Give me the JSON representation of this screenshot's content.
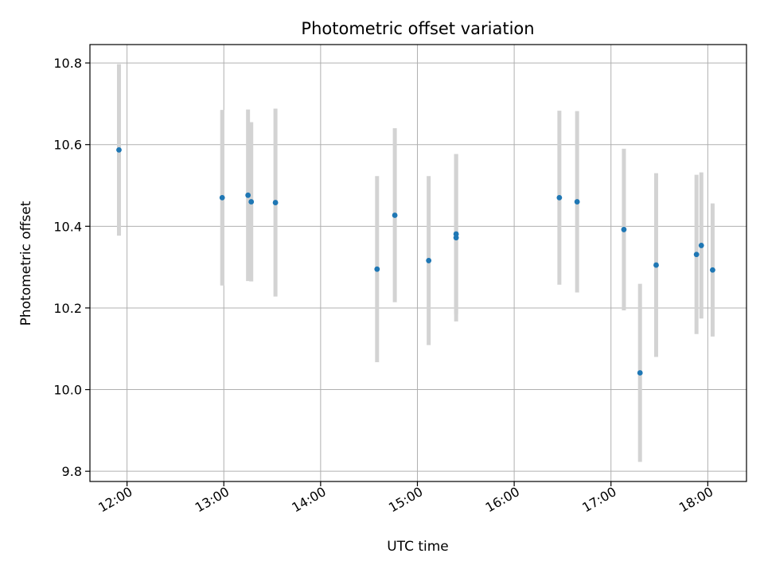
{
  "chart_data": {
    "type": "scatter",
    "title": "Photometric offset variation",
    "xlabel": "UTC time",
    "ylabel": "Photometric offset",
    "x_tick_labels": [
      "12:00",
      "13:00",
      "14:00",
      "15:00",
      "16:00",
      "17:00",
      "18:00"
    ],
    "y_tick_labels": [
      "9.8",
      "10.0",
      "10.2",
      "10.4",
      "10.6",
      "10.8"
    ],
    "x_ticks": [
      "12:00",
      "13:00",
      "14:00",
      "15:00",
      "16:00",
      "17:00",
      "18:00"
    ],
    "y_ticks": [
      9.8,
      10.0,
      10.2,
      10.4,
      10.6,
      10.8
    ],
    "xlim": [
      "11:37",
      "18:24"
    ],
    "ylim": [
      9.775,
      10.845
    ],
    "grid": true,
    "colors": {
      "point": "#1f77b4",
      "errorbar": "#d3d3d3",
      "grid": "#b0b0b0"
    },
    "points": [
      {
        "x": "11:55",
        "y": 10.587,
        "yerr": 0.21
      },
      {
        "x": "12:59",
        "y": 10.47,
        "yerr": 0.215
      },
      {
        "x": "13:15",
        "y": 10.476,
        "yerr": 0.21
      },
      {
        "x": "13:17",
        "y": 10.46,
        "yerr": 0.195
      },
      {
        "x": "13:32",
        "y": 10.458,
        "yerr": 0.23
      },
      {
        "x": "14:35",
        "y": 10.295,
        "yerr": 0.228
      },
      {
        "x": "14:46",
        "y": 10.427,
        "yerr": 0.213
      },
      {
        "x": "15:07",
        "y": 10.316,
        "yerr": 0.207
      },
      {
        "x": "15:24",
        "y": 10.372,
        "yerr": 0.205
      },
      {
        "x": "15:24",
        "y": 10.381,
        "yerr": 0.196
      },
      {
        "x": "16:28",
        "y": 10.47,
        "yerr": 0.213
      },
      {
        "x": "16:39",
        "y": 10.46,
        "yerr": 0.222
      },
      {
        "x": "17:08",
        "y": 10.392,
        "yerr": 0.198
      },
      {
        "x": "17:18",
        "y": 10.041,
        "yerr": 0.218
      },
      {
        "x": "17:28",
        "y": 10.305,
        "yerr": 0.225
      },
      {
        "x": "17:53",
        "y": 10.331,
        "yerr": 0.195
      },
      {
        "x": "17:56",
        "y": 10.353,
        "yerr": 0.179
      },
      {
        "x": "18:03",
        "y": 10.293,
        "yerr": 0.163
      }
    ]
  }
}
